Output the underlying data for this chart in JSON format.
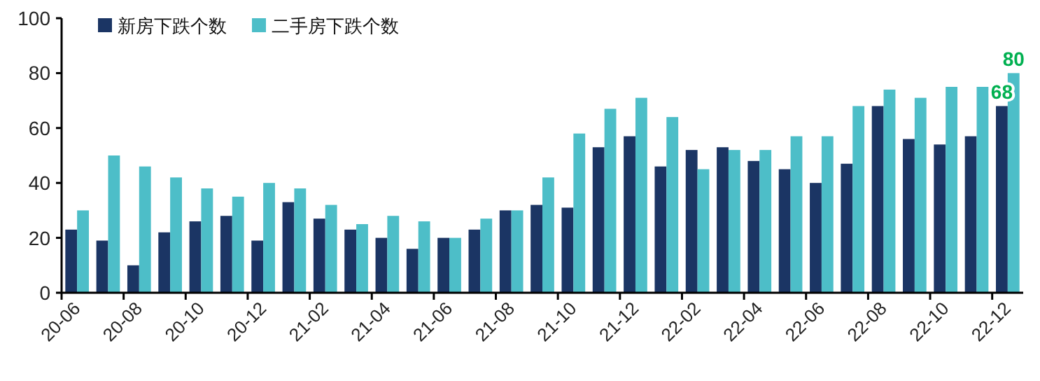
{
  "chart_data": {
    "type": "bar",
    "categories": [
      "20-06",
      null,
      "20-08",
      null,
      "20-10",
      null,
      "20-12",
      null,
      "21-02",
      null,
      "21-04",
      null,
      "21-06",
      null,
      "21-08",
      null,
      "21-10",
      null,
      "21-12",
      null,
      "22-02",
      null,
      "22-04",
      null,
      "22-06",
      null,
      "22-08",
      null,
      "22-10",
      null,
      "22-12"
    ],
    "series": [
      {
        "name": "新房下跌个数",
        "color": "#1b3564",
        "values": [
          23,
          19,
          10,
          22,
          26,
          28,
          19,
          33,
          27,
          23,
          20,
          16,
          20,
          23,
          30,
          32,
          31,
          53,
          57,
          46,
          52,
          53,
          48,
          45,
          40,
          47,
          68,
          56,
          54,
          57,
          68
        ],
        "value_labels": [
          null,
          null,
          null,
          null,
          null,
          null,
          null,
          null,
          null,
          null,
          null,
          null,
          null,
          null,
          null,
          null,
          null,
          null,
          null,
          null,
          null,
          null,
          null,
          null,
          null,
          null,
          null,
          null,
          null,
          null,
          "68"
        ]
      },
      {
        "name": "二手房下跌个数",
        "color": "#4dbec8",
        "values": [
          30,
          50,
          46,
          42,
          38,
          35,
          40,
          38,
          32,
          25,
          28,
          26,
          20,
          27,
          30,
          42,
          58,
          67,
          71,
          64,
          45,
          52,
          52,
          57,
          57,
          68,
          74,
          71,
          75,
          75,
          80
        ],
        "value_labels": [
          null,
          null,
          null,
          null,
          null,
          null,
          null,
          null,
          null,
          null,
          null,
          null,
          null,
          null,
          null,
          null,
          null,
          null,
          null,
          null,
          null,
          null,
          null,
          null,
          null,
          null,
          null,
          null,
          null,
          null,
          "80"
        ]
      }
    ],
    "ylim": [
      0,
      100
    ],
    "yticks": [
      0,
      20,
      40,
      60,
      80,
      100
    ],
    "grid": false,
    "legend": "top left"
  }
}
